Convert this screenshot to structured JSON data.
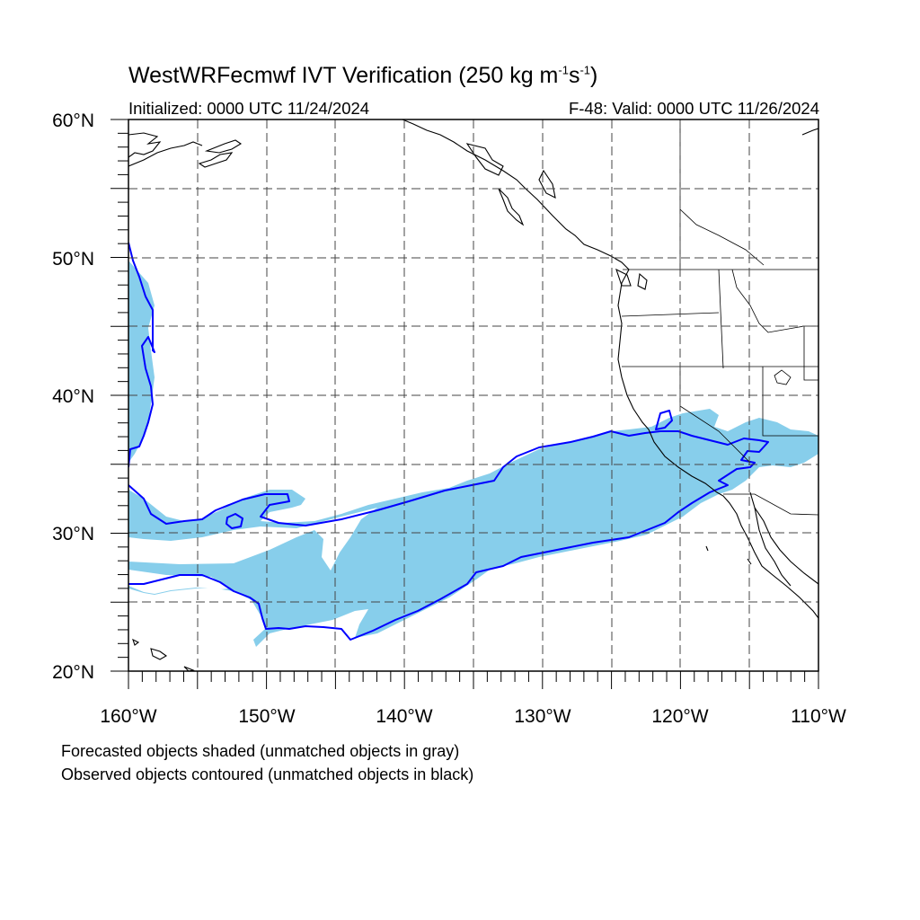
{
  "title": {
    "main": "WestWRFecmwf IVT Verification (250 kg m",
    "exp1": "-1",
    "mid": "s",
    "exp2": "-1",
    "end": ")"
  },
  "initialized": "Initialized: 0000 UTC 11/24/2024",
  "valid": "F-48: Valid: 0000 UTC 11/26/2024",
  "axes": {
    "lat_labels": [
      "20°N",
      "30°N",
      "40°N",
      "50°N",
      "60°N"
    ],
    "lon_labels": [
      "160°W",
      "150°W",
      "140°W",
      "130°W",
      "120°W",
      "110°W"
    ]
  },
  "legend": {
    "line1": "Forecasted objects shaded (unmatched objects in gray)",
    "line2": "Observed objects contoured (unmatched objects in black)"
  },
  "colors": {
    "forecast_fill": "#87ceeb",
    "observed_contour": "#0000ff",
    "coast": "#000000",
    "grid": "#444444"
  }
}
